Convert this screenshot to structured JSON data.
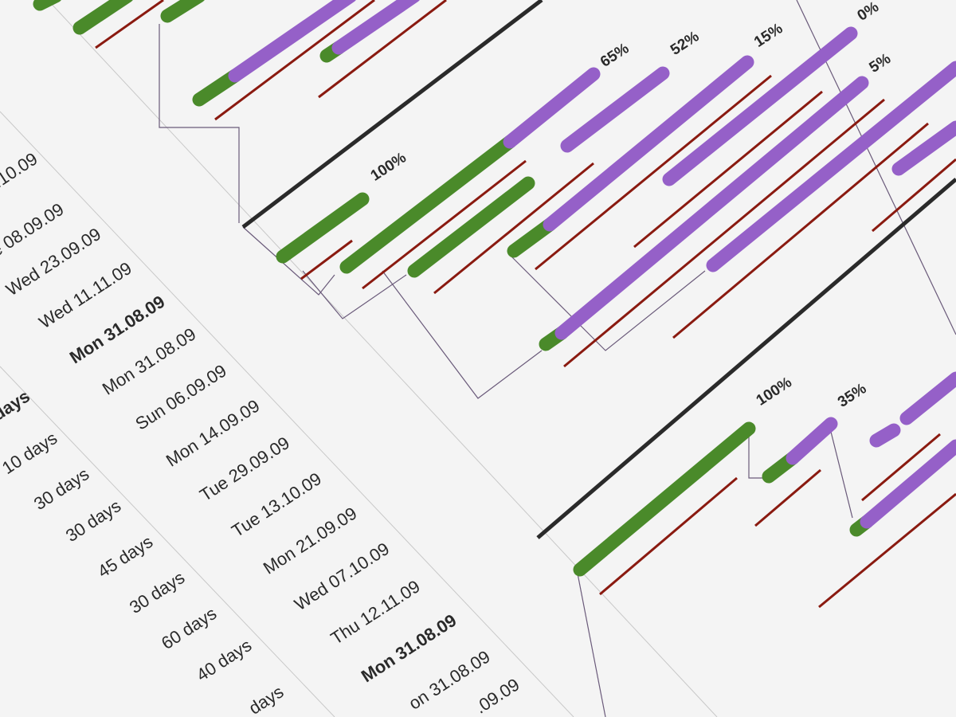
{
  "dates": [
    ".10.09",
    "e 08.09.09",
    "Wed 23.09.09",
    "Wed 11.11.09",
    "Mon 31.08.09",
    "Mon 31.08.09",
    "Sun 06.09.09",
    "Mon 14.09.09",
    "Tue 29.09.09",
    "Tue 13.10.09",
    "Mon 21.09.09",
    "Wed 07.10.09",
    "Thu 12.11.09",
    "Mon 31.08.09",
    "on 31.08.09",
    ".09.09"
  ],
  "durations": [
    "days",
    "10 days",
    "30 days",
    "30 days",
    "45 days",
    "30 days",
    "60 days",
    "40 days",
    "days"
  ],
  "percentages": [
    "0%",
    "65%",
    "52%",
    "15%",
    "5%",
    "100%",
    "100%",
    "35%"
  ]
}
